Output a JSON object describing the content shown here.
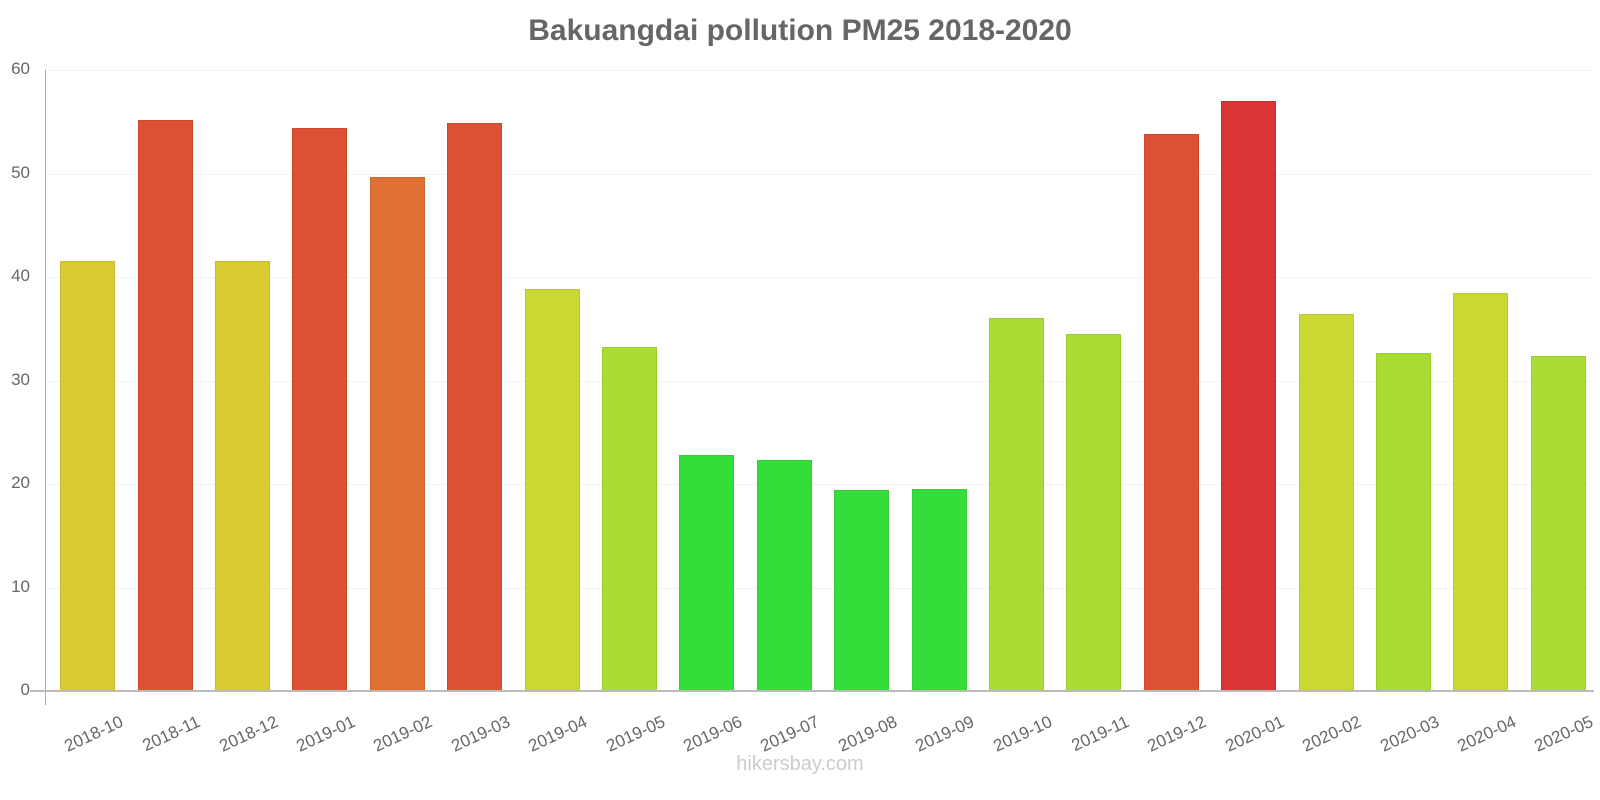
{
  "chart_data": {
    "type": "bar",
    "title": "Bakuangdai pollution PM25 2018-2020",
    "xlabel": "",
    "ylabel": "",
    "ylim": [
      0,
      60
    ],
    "yticks": [
      0,
      10,
      20,
      30,
      40,
      50,
      60
    ],
    "grid": true,
    "legend": null,
    "categories": [
      "2018-10",
      "2018-11",
      "2018-12",
      "2019-01",
      "2019-02",
      "2019-03",
      "2019-04",
      "2019-05",
      "2019-06",
      "2019-07",
      "2019-08",
      "2019-09",
      "2019-10",
      "2019-11",
      "2019-12",
      "2020-01",
      "2020-02",
      "2020-03",
      "2020-04",
      "2020-05"
    ],
    "values": [
      41.5,
      55.2,
      41.5,
      54.4,
      49.7,
      54.9,
      38.8,
      33.2,
      22.8,
      22.3,
      19.4,
      19.5,
      36.0,
      34.5,
      53.8,
      57.0,
      36.4,
      32.7,
      38.5,
      32.4
    ],
    "colors": [
      "#dbcb33",
      "#dc5034",
      "#dbcb33",
      "#dc5034",
      "#de7034",
      "#dc5034",
      "#cad834",
      "#aadd34",
      "#35dd3a",
      "#35dd3a",
      "#35dd3a",
      "#35dd3a",
      "#aadd34",
      "#aadd34",
      "#dc5034",
      "#da3434",
      "#cad834",
      "#aadd34",
      "#cad834",
      "#aadd34"
    ]
  },
  "watermark": "hikersbay.com"
}
